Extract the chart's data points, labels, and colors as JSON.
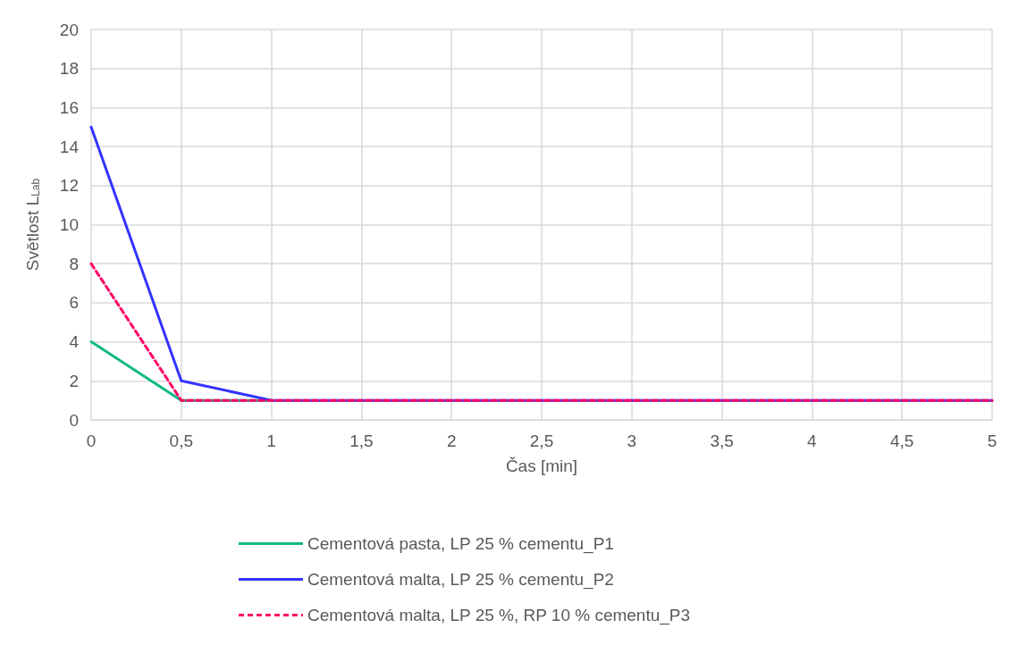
{
  "chart_data": {
    "type": "line",
    "xlabel": "Čas [min]",
    "ylabel": "Světlost L$_{Lab}$",
    "x": [
      0,
      0.5,
      1,
      1.5,
      2,
      2.5,
      3,
      3.5,
      4,
      4.5,
      5
    ],
    "series": [
      {
        "name": "Cementová pasta, LP 25 % cementu_P1",
        "color": "#12b886",
        "values": [
          4,
          1,
          1,
          null,
          null,
          null,
          null,
          null,
          null,
          null,
          null
        ],
        "line_style": "solid"
      },
      {
        "name": "Cementová malta, LP 25 % cementu_P2",
        "color": "#3333ff",
        "values": [
          15,
          2,
          1,
          1,
          1,
          1,
          1,
          1,
          1,
          1,
          1
        ],
        "line_style": "solid"
      },
      {
        "name": "Cementová malta, LP 25 %, RP 10 % cementu_P3",
        "color": "#ff0066",
        "values": [
          8,
          1,
          1,
          1,
          1,
          1,
          1,
          1,
          1,
          1,
          1
        ],
        "line_style": "dashed"
      }
    ],
    "xlim": [
      0,
      5
    ],
    "xticks": [
      0,
      {
        "value": 0.5,
        "label": "0,5"
      },
      1,
      {
        "value": 1.5,
        "label": "1,5"
      },
      2,
      {
        "value": 2.5,
        "label": "2,5"
      },
      3,
      {
        "value": 3.5,
        "label": "3,5"
      },
      4,
      {
        "value": 4.5,
        "label": "4,5"
      },
      5
    ],
    "ylim": [
      0,
      20
    ],
    "yticks": [
      0,
      2,
      4,
      6,
      8,
      10,
      12,
      14,
      16,
      18,
      20
    ],
    "grid": true,
    "legend": "bottom",
    "marker": "none"
  }
}
